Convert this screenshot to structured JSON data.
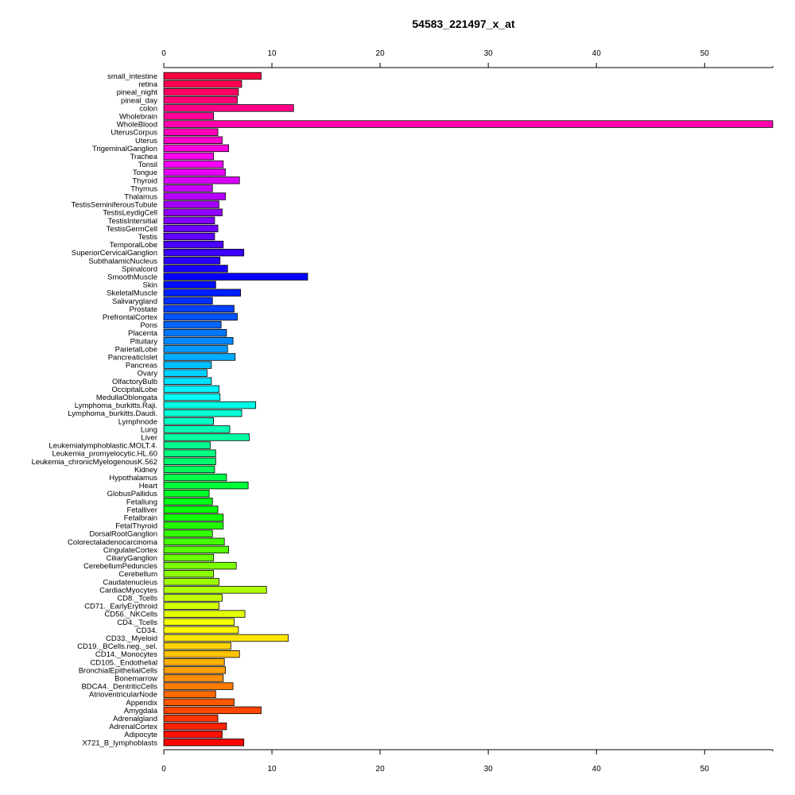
{
  "chart_data": {
    "type": "bar",
    "orientation": "horizontal",
    "title": "54583_221497_x_at",
    "xlabel": "",
    "ylabel": "",
    "xlim": [
      0,
      56.3
    ],
    "xticks": [
      "0",
      "10",
      "20",
      "30",
      "40",
      "50"
    ],
    "axes": "top-and-bottom",
    "grid": false,
    "legend": "none",
    "categories": [
      "small_intestine",
      "retina",
      "pineal_night",
      "pineal_day",
      "colon",
      "Wholebrain",
      "WholeBlood",
      "UterusCorpus",
      "Uterus",
      "TrigeminalGanglion",
      "Trachea",
      "Tonsil",
      "Tongue",
      "Thyroid",
      "Thymus",
      "Thalamus",
      "TestisSeminiferousTubule",
      "TestisLeydigCell",
      "TestisIntersitial",
      "TestisGermCell",
      "Testis",
      "TemporalLobe",
      "SuperiorCervicalGanglion",
      "SubthalamicNucleus",
      "Spinalcord",
      "SmoothMuscle",
      "Skin",
      "SkeletalMuscle",
      "Salivarygland",
      "Prostate",
      "PrefrontalCortex",
      "Pons",
      "Placenta",
      "Pituitary",
      "ParietalLobe",
      "PancreaticIslet",
      "Pancreas",
      "Ovary",
      "OlfactoryBulb",
      "OccipitalLobe",
      "MedullaOblongata",
      "Lymphoma_burkitts.Raji.",
      "Lymphoma_burkitts.Daudi.",
      "Lymphnode",
      "Lung",
      "Liver",
      "Leukemialymphoblastic.MOLT.4.",
      "Leukemia_promyelocytic.HL.60",
      "Leukemia_chronicMyelogenousK.562",
      "Kidney",
      "Hypothalamus",
      "Heart",
      "GlobusPallidus",
      "Fetallung",
      "Fetalliver",
      "Fetalbrain",
      "FetalThyroid",
      "DorsalRootGanglion",
      "Colorectaladenocarcinoma",
      "CingulateCortex",
      "CiliaryGanglion",
      "CerebellumPeduncles",
      "Cerebellum",
      "Caudatenucleus",
      "CardiacMyocytes",
      "CD8._Tcells",
      "CD71._EarlyErythroid",
      "CD56._NKCells",
      "CD4._Tcells",
      "CD34.",
      "CD33._Myeloid",
      "CD19._BCells.neg._sel.",
      "CD14._Monocytes",
      "CD105._Endothelial",
      "BronchialEpithelialCells",
      "Bonemarrow",
      "BDCA4._DentriticCells",
      "AtrioventricularNode",
      "Appendix",
      "Amygdala",
      "Adrenalgland",
      "AdrenalCortex",
      "Adipocyte",
      "X721_B_lymphoblasts"
    ],
    "values": [
      9.0,
      7.2,
      6.9,
      6.8,
      12.0,
      4.6,
      56.3,
      5.0,
      5.4,
      6.0,
      4.6,
      5.5,
      5.7,
      7.0,
      4.5,
      5.7,
      5.1,
      5.4,
      4.7,
      5.0,
      4.7,
      5.5,
      7.4,
      5.2,
      5.9,
      13.3,
      4.8,
      7.1,
      4.5,
      6.5,
      6.8,
      5.3,
      5.8,
      6.4,
      5.9,
      6.6,
      4.4,
      4.0,
      4.4,
      5.1,
      5.2,
      8.5,
      7.2,
      4.6,
      6.1,
      7.9,
      4.3,
      4.8,
      4.8,
      4.7,
      5.8,
      7.8,
      4.2,
      4.5,
      5.0,
      5.5,
      5.5,
      4.5,
      5.6,
      6.0,
      4.6,
      6.7,
      4.6,
      5.1,
      9.5,
      5.4,
      5.1,
      7.5,
      6.5,
      6.9,
      11.5,
      6.2,
      7.0,
      5.6,
      5.7,
      5.5,
      6.4,
      4.8,
      6.5,
      9.0,
      5.0,
      5.8,
      5.4,
      7.4
    ]
  }
}
